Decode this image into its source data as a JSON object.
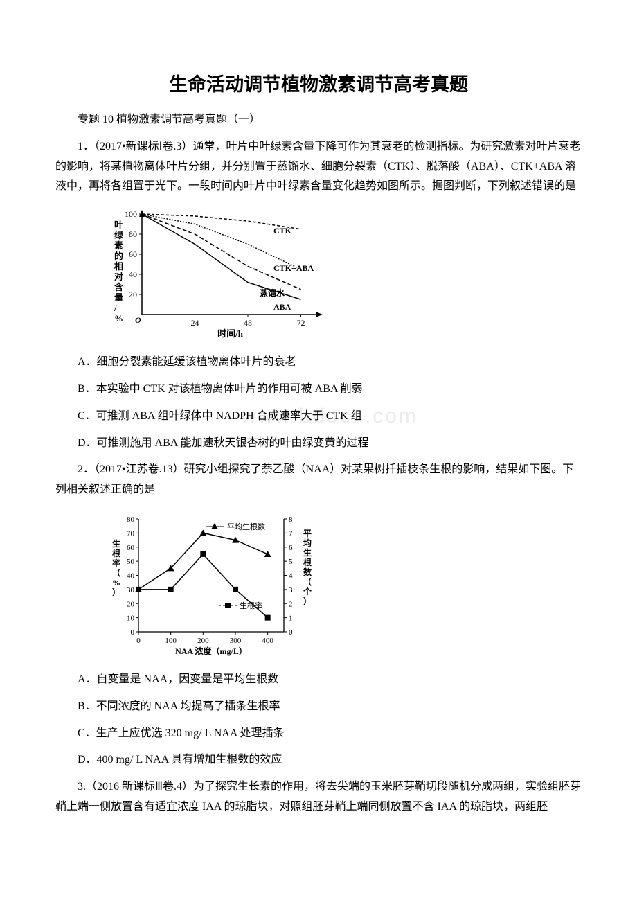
{
  "title": "生命活动调节植物激素调节高考真题",
  "subtitle": "专题 10 植物激素调节高考真题（一）",
  "q1": {
    "stem": "1．（2017•新课标Ⅰ卷.3）通常，叶片中叶绿素含量下降可作为其衰老的检测指标。为研究激素对叶片衰老的影响，将某植物离体叶片分组，并分别置于蒸馏水、细胞分裂素（CTK）、脱落酸（ABA）、CTK+ABA 溶液中，再将各组置于光下。一段时间内叶片中叶绿素含量变化趋势如图所示。据图判断，下列叙述错误的是",
    "optA": "A．细胞分裂素能延缓该植物离体叶片的衰老",
    "optB": "B．本实验中 CTK 对该植物离体叶片的作用可被 ABA 削弱",
    "optC": "C．可推测 ABA 组叶绿体中 NADPH 合成速率大于 CTK 组",
    "optD": "D．可推测施用 ABA 能加速秋天银杏树的叶由绿变黄的过程"
  },
  "q2": {
    "stem": "2．（2017•江苏卷.13）研究小组探究了萘乙酸（NAA）对某果树扦插枝条生根的影响，结果如下图。下列相关叙述正确的是",
    "optA": "A．自变量是 NAA，因变量是平均生根数",
    "optB": "B．不同浓度的 NAA 均提高了插条生根率",
    "optC": "C．生产上应优选 320 mg/ L NAA 处理插条",
    "optD": "D．400 mg/ L NAA 具有增加生根数的效应"
  },
  "q3": {
    "stem": "3.（2016 新课标Ⅲ卷.4）为了探究生长素的作用，将去尖端的玉米胚芽鞘切段随机分成两组，实验组胚芽鞘上端一侧放置含有适宜浓度 IAA 的琼脂块，对照组胚芽鞘上端同侧放置不含 IAA 的琼脂块，两组胚"
  },
  "chart1": {
    "type": "line",
    "ylabel": "叶绿素的相对含量/%",
    "xlabel": "时间/h",
    "ylim": [
      0,
      100
    ],
    "xlim": [
      0,
      80
    ],
    "yticks": [
      20,
      40,
      60,
      80,
      100
    ],
    "xticks": [
      24,
      48,
      72
    ],
    "series": [
      {
        "label": "CTK",
        "dash": "4,3",
        "points": [
          [
            0,
            100
          ],
          [
            24,
            98
          ],
          [
            48,
            93
          ],
          [
            72,
            85
          ]
        ]
      },
      {
        "label": "CTK+ABA",
        "dash": "2,2",
        "points": [
          [
            0,
            100
          ],
          [
            24,
            90
          ],
          [
            48,
            70
          ],
          [
            72,
            45
          ]
        ]
      },
      {
        "label": "蒸馏水",
        "dash": "6,3",
        "points": [
          [
            0,
            100
          ],
          [
            24,
            80
          ],
          [
            48,
            48
          ],
          [
            72,
            25
          ]
        ]
      },
      {
        "label": "ABA",
        "dash": "0",
        "points": [
          [
            0,
            100
          ],
          [
            24,
            70
          ],
          [
            48,
            32
          ],
          [
            72,
            15
          ]
        ]
      }
    ],
    "stroke": "#000000",
    "fontsize": 12,
    "label_fontsize": 13
  },
  "chart2": {
    "type": "dual-axis-line",
    "ylabel_left": "生根率（%）",
    "ylabel_right": "平均生根数（个）",
    "xlabel": "NAA 浓度（mg/L）",
    "xlim": [
      0,
      450
    ],
    "ylim_left": [
      0,
      80
    ],
    "ylim_right": [
      0,
      8
    ],
    "xticks": [
      0,
      100,
      200,
      300,
      400
    ],
    "yticks_left": [
      0,
      10,
      20,
      30,
      40,
      50,
      60,
      70,
      80
    ],
    "yticks_right": [
      0,
      1,
      2,
      3,
      4,
      5,
      6,
      7,
      8
    ],
    "series": [
      {
        "label": "平均生根数",
        "marker": "triangle",
        "axis": "right",
        "points": [
          [
            0,
            3.0
          ],
          [
            100,
            4.5
          ],
          [
            200,
            7.0
          ],
          [
            300,
            6.5
          ],
          [
            400,
            5.5
          ]
        ]
      },
      {
        "label": "生根率",
        "marker": "square",
        "axis": "left",
        "points": [
          [
            0,
            30
          ],
          [
            100,
            30
          ],
          [
            200,
            55
          ],
          [
            300,
            30
          ],
          [
            400,
            10
          ]
        ]
      }
    ],
    "stroke": "#000000",
    "fontsize": 11
  },
  "watermark": "www.bdocx.com"
}
